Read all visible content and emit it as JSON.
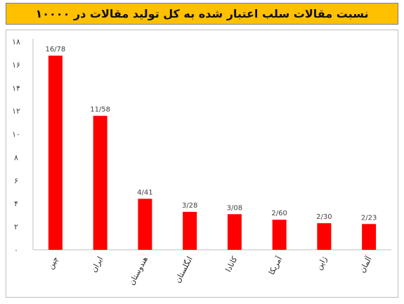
{
  "chart_data": {
    "type": "bar",
    "title": "نسبت مقالات سلب اعتبار شده به کل تولید مقالات در ۱۰۰۰۰",
    "categories": [
      "چین",
      "ایران",
      "هندوستان",
      "انگلستان",
      "کانادا",
      "آمریکا",
      "ژاپن",
      "آلمان"
    ],
    "values": [
      16.78,
      11.58,
      4.41,
      3.28,
      3.08,
      2.6,
      2.3,
      2.23
    ],
    "data_labels": [
      "16/78",
      "11/58",
      "4/41",
      "3/28",
      "3/08",
      "2/60",
      "2/30",
      "2/23"
    ],
    "ylim": [
      0,
      18
    ],
    "yticks": [
      0,
      2,
      4,
      6,
      8,
      10,
      12,
      14,
      16,
      18
    ],
    "ytick_labels": [
      "۰",
      "۲",
      "۴",
      "۶",
      "۸",
      "۱۰",
      "۱۲",
      "۱۴",
      "۱۶",
      "۱۸"
    ],
    "xlabel": "",
    "ylabel": "",
    "grid": false,
    "legend": "none",
    "colors": {
      "bar": "#ff0000",
      "title_background": "#ffc000",
      "axis": "#bfbfbf"
    }
  }
}
